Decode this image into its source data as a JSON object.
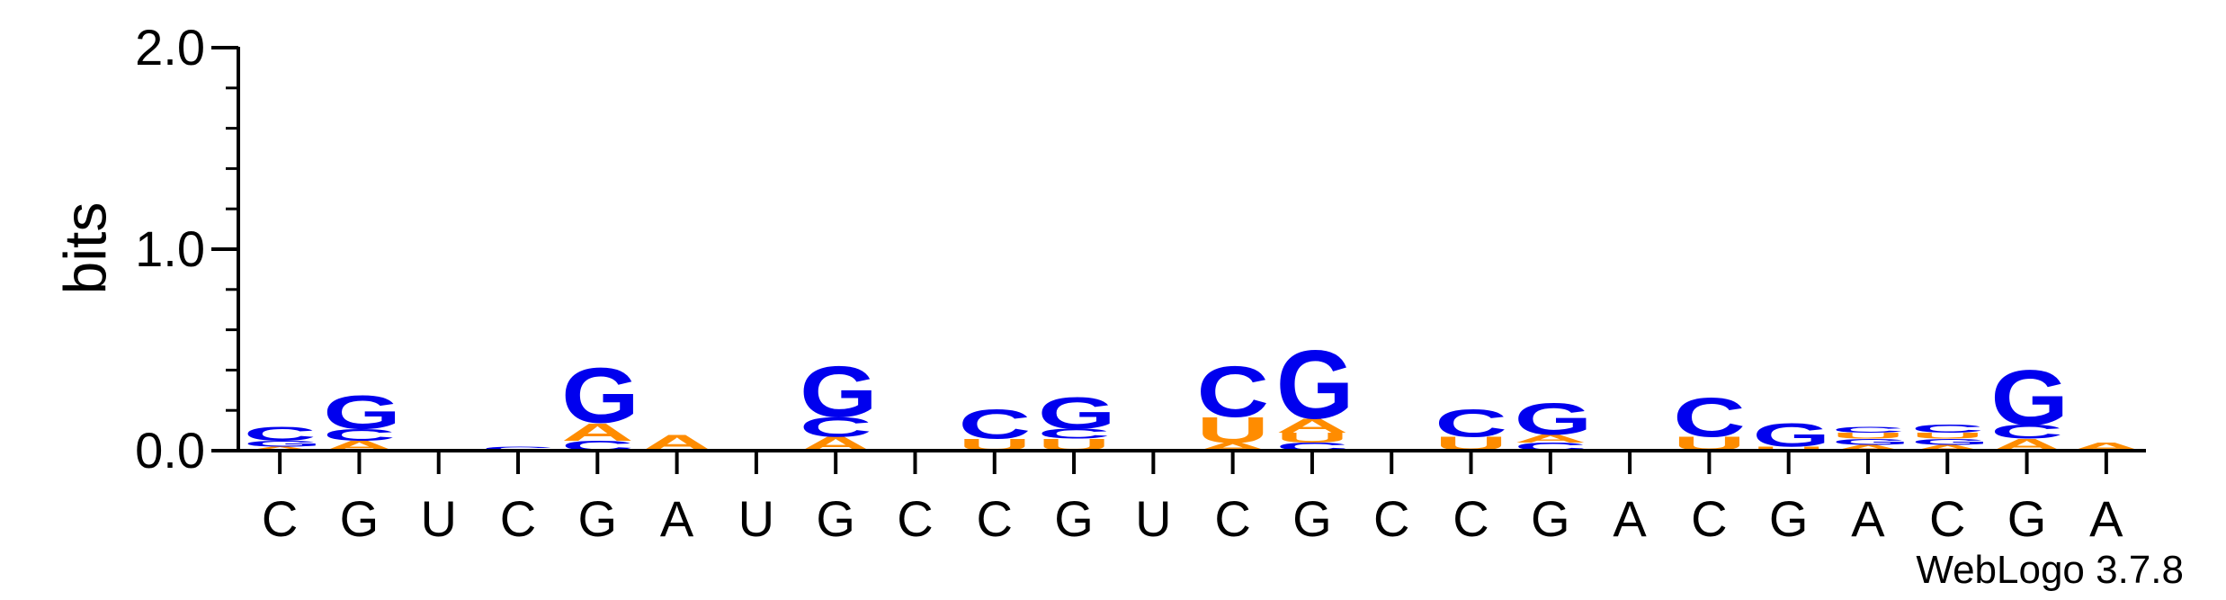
{
  "chart_data": {
    "type": "sequence-logo",
    "ylabel": "bits",
    "ylim": [
      0,
      2.0
    ],
    "yticks": [
      "0.0",
      "1.0",
      "2.0"
    ],
    "ytick_values": [
      0.0,
      1.0,
      2.0
    ],
    "consensus": [
      "C",
      "G",
      "U",
      "C",
      "G",
      "A",
      "U",
      "G",
      "C",
      "C",
      "G",
      "U",
      "C",
      "G",
      "C",
      "C",
      "G",
      "A",
      "C",
      "G",
      "A",
      "C",
      "G",
      "A"
    ],
    "colors": {
      "G": "#0000ee",
      "C": "#0000ee",
      "A": "#ff8c00",
      "U": "#ff8c00"
    },
    "positions": [
      {
        "stack": [
          {
            "letter": "A",
            "height": 0.02
          },
          {
            "letter": "G",
            "height": 0.03
          },
          {
            "letter": "C",
            "height": 0.07
          }
        ]
      },
      {
        "stack": [
          {
            "letter": "A",
            "height": 0.05
          },
          {
            "letter": "C",
            "height": 0.06
          },
          {
            "letter": "G",
            "height": 0.17
          }
        ]
      },
      {
        "stack": []
      },
      {
        "stack": [
          {
            "letter": "C",
            "height": 0.02
          }
        ]
      },
      {
        "stack": [
          {
            "letter": "C",
            "height": 0.05
          },
          {
            "letter": "A",
            "height": 0.09
          },
          {
            "letter": "G",
            "height": 0.28
          }
        ]
      },
      {
        "stack": [
          {
            "letter": "A",
            "height": 0.08
          }
        ]
      },
      {
        "stack": []
      },
      {
        "stack": [
          {
            "letter": "A",
            "height": 0.07
          },
          {
            "letter": "C",
            "height": 0.1
          },
          {
            "letter": "G",
            "height": 0.26
          }
        ]
      },
      {
        "stack": []
      },
      {
        "stack": [
          {
            "letter": "U",
            "height": 0.06
          },
          {
            "letter": "C",
            "height": 0.15
          }
        ]
      },
      {
        "stack": [
          {
            "letter": "U",
            "height": 0.06
          },
          {
            "letter": "C",
            "height": 0.05
          },
          {
            "letter": "G",
            "height": 0.16
          }
        ]
      },
      {
        "stack": []
      },
      {
        "stack": [
          {
            "letter": "A",
            "height": 0.04
          },
          {
            "letter": "U",
            "height": 0.13
          },
          {
            "letter": "C",
            "height": 0.26
          }
        ]
      },
      {
        "stack": [
          {
            "letter": "C",
            "height": 0.04
          },
          {
            "letter": "U",
            "height": 0.05
          },
          {
            "letter": "A",
            "height": 0.07
          },
          {
            "letter": "G",
            "height": 0.35
          }
        ]
      },
      {
        "stack": []
      },
      {
        "stack": [
          {
            "letter": "U",
            "height": 0.07
          },
          {
            "letter": "C",
            "height": 0.14
          }
        ]
      },
      {
        "stack": [
          {
            "letter": "C",
            "height": 0.04
          },
          {
            "letter": "A",
            "height": 0.04
          },
          {
            "letter": "G",
            "height": 0.16
          }
        ]
      },
      {
        "stack": []
      },
      {
        "stack": [
          {
            "letter": "U",
            "height": 0.07
          },
          {
            "letter": "C",
            "height": 0.2
          }
        ]
      },
      {
        "stack": [
          {
            "letter": "U",
            "height": 0.02
          },
          {
            "letter": "G",
            "height": 0.12
          }
        ]
      },
      {
        "stack": [
          {
            "letter": "A",
            "height": 0.03
          },
          {
            "letter": "G",
            "height": 0.03
          },
          {
            "letter": "U",
            "height": 0.03
          },
          {
            "letter": "C",
            "height": 0.03
          }
        ]
      },
      {
        "stack": [
          {
            "letter": "A",
            "height": 0.03
          },
          {
            "letter": "G",
            "height": 0.03
          },
          {
            "letter": "U",
            "height": 0.03
          },
          {
            "letter": "C",
            "height": 0.04
          }
        ]
      },
      {
        "stack": [
          {
            "letter": "A",
            "height": 0.06
          },
          {
            "letter": "C",
            "height": 0.07
          },
          {
            "letter": "G",
            "height": 0.28
          }
        ]
      },
      {
        "stack": [
          {
            "letter": "A",
            "height": 0.04
          }
        ]
      }
    ]
  },
  "credit": "WebLogo 3.7.8"
}
